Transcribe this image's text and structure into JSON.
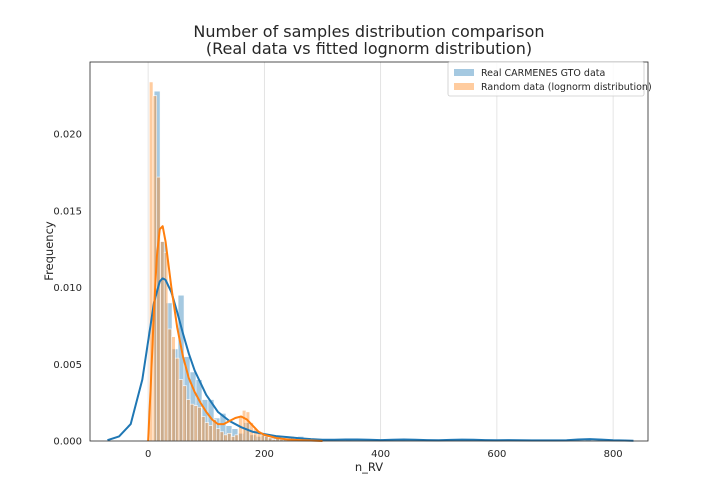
{
  "chart_data": {
    "type": "histogram",
    "title_line1": "Number of samples distribution comparison",
    "title_line2": "(Real data vs fitted lognorm distribution)",
    "xlabel": "n_RV",
    "ylabel": "Frequency",
    "xlim": [
      -100,
      860
    ],
    "ylim": [
      0,
      0.0247
    ],
    "xticks": [
      0,
      200,
      400,
      600,
      800
    ],
    "yticks": [
      0.0,
      0.005,
      0.01,
      0.015,
      0.02
    ],
    "ytick_labels": [
      "0.000",
      "0.005",
      "0.010",
      "0.015",
      "0.020"
    ],
    "grid": "vertical",
    "legend_position": "top-right",
    "series": [
      {
        "name": "Real CARMENES GTO data",
        "color": "#1f77b4",
        "bin_start": 0,
        "bin_width": 10.3,
        "values": [
          0.0,
          0.0228,
          0.013,
          0.009,
          0.006,
          0.0095,
          0.0055,
          0.0045,
          0.004,
          0.0027,
          0.0027,
          0.0015,
          0.0018,
          0.001,
          0.0008,
          0.0005,
          0.0012,
          0.0004,
          0.0003,
          0.0004,
          0.0002,
          0.0003,
          0.0002,
          0.0002,
          0.0001,
          0.0003,
          0.0001,
          0.0001,
          0.0001,
          0.0001,
          0.0001,
          0.0001,
          0.0,
          0.0001,
          0.0,
          0.0,
          0.0,
          0.0,
          0.0,
          0.0,
          0.0001,
          0.0,
          0.0001,
          0.0,
          0.0,
          0.0,
          0.0,
          0.0,
          0.0,
          0.0,
          0.0,
          0.0,
          0.0,
          0.0001,
          0.0,
          0.0,
          0.0,
          0.0,
          0.0,
          0.0001,
          0.0,
          0.0,
          0.0,
          0.0,
          0.0,
          0.0,
          0.0,
          0.0,
          0.0,
          0.0,
          0.0,
          0.0,
          0.0,
          0.0001
        ],
        "kde_x": [
          -70,
          -50,
          -30,
          -10,
          0,
          10,
          20,
          25,
          30,
          40,
          50,
          60,
          70,
          80,
          100,
          120,
          140,
          160,
          180,
          200,
          220,
          240,
          260,
          280,
          300,
          320,
          340,
          360,
          380,
          400,
          420,
          440,
          460,
          480,
          500,
          520,
          540,
          560,
          580,
          600,
          620,
          640,
          660,
          680,
          700,
          720,
          740,
          760,
          780,
          800,
          820,
          835
        ],
        "kde_y": [
          5e-05,
          0.0003,
          0.0011,
          0.004,
          0.0065,
          0.009,
          0.0104,
          0.0106,
          0.0105,
          0.0097,
          0.0084,
          0.007,
          0.0057,
          0.0046,
          0.003,
          0.0019,
          0.0013,
          0.0009,
          0.0006,
          0.00045,
          0.00032,
          0.00025,
          0.00018,
          0.00012,
          8e-05,
          8e-05,
          0.0001,
          0.0001,
          8e-05,
          6e-05,
          8e-05,
          0.0001,
          8e-05,
          6e-05,
          5e-05,
          7e-05,
          9e-05,
          8e-05,
          6e-05,
          5e-05,
          6e-05,
          5e-05,
          4e-05,
          4e-05,
          4e-05,
          5e-05,
          0.0001,
          0.00012,
          9e-05,
          5e-05,
          3e-05,
          2e-05
        ]
      },
      {
        "name": "Random data (lognorm distribution)",
        "color": "#ff7f0e",
        "bin_start": 2,
        "bin_width": 6.4,
        "values": [
          0.0234,
          0.0225,
          0.0172,
          0.013,
          0.0123,
          0.0073,
          0.0068,
          0.0054,
          0.004,
          0.0036,
          0.0027,
          0.0024,
          0.0023,
          0.0022,
          0.0016,
          0.0012,
          0.001,
          0.0014,
          0.0008,
          0.0006,
          0.0004,
          0.0005,
          0.0003,
          0.0004,
          0.0016,
          0.002,
          0.0019,
          0.0012,
          0.0008,
          0.0005,
          0.0004,
          0.0003,
          0.0002,
          0.0001,
          0.0002,
          0.0001,
          0.0001,
          0.0002,
          0.0003,
          0.0001,
          0.0001
        ]
      }
    ],
    "orange_kde_x": [
      0,
      5,
      10,
      15,
      20,
      25,
      30,
      35,
      40,
      50,
      60,
      70,
      80,
      90,
      100,
      110,
      120,
      130,
      140,
      150,
      160,
      170,
      180,
      190,
      200,
      210,
      220,
      240,
      260,
      280,
      300
    ],
    "orange_kde_y": [
      0.0,
      0.004,
      0.0085,
      0.012,
      0.0138,
      0.014,
      0.013,
      0.0115,
      0.01,
      0.0074,
      0.0055,
      0.0041,
      0.0032,
      0.0025,
      0.0019,
      0.0014,
      0.0011,
      0.0011,
      0.0013,
      0.0015,
      0.0016,
      0.0014,
      0.001,
      0.0006,
      0.0004,
      0.0003,
      0.0002,
      0.0001,
      6e-05,
      3e-05,
      0.0
    ]
  }
}
